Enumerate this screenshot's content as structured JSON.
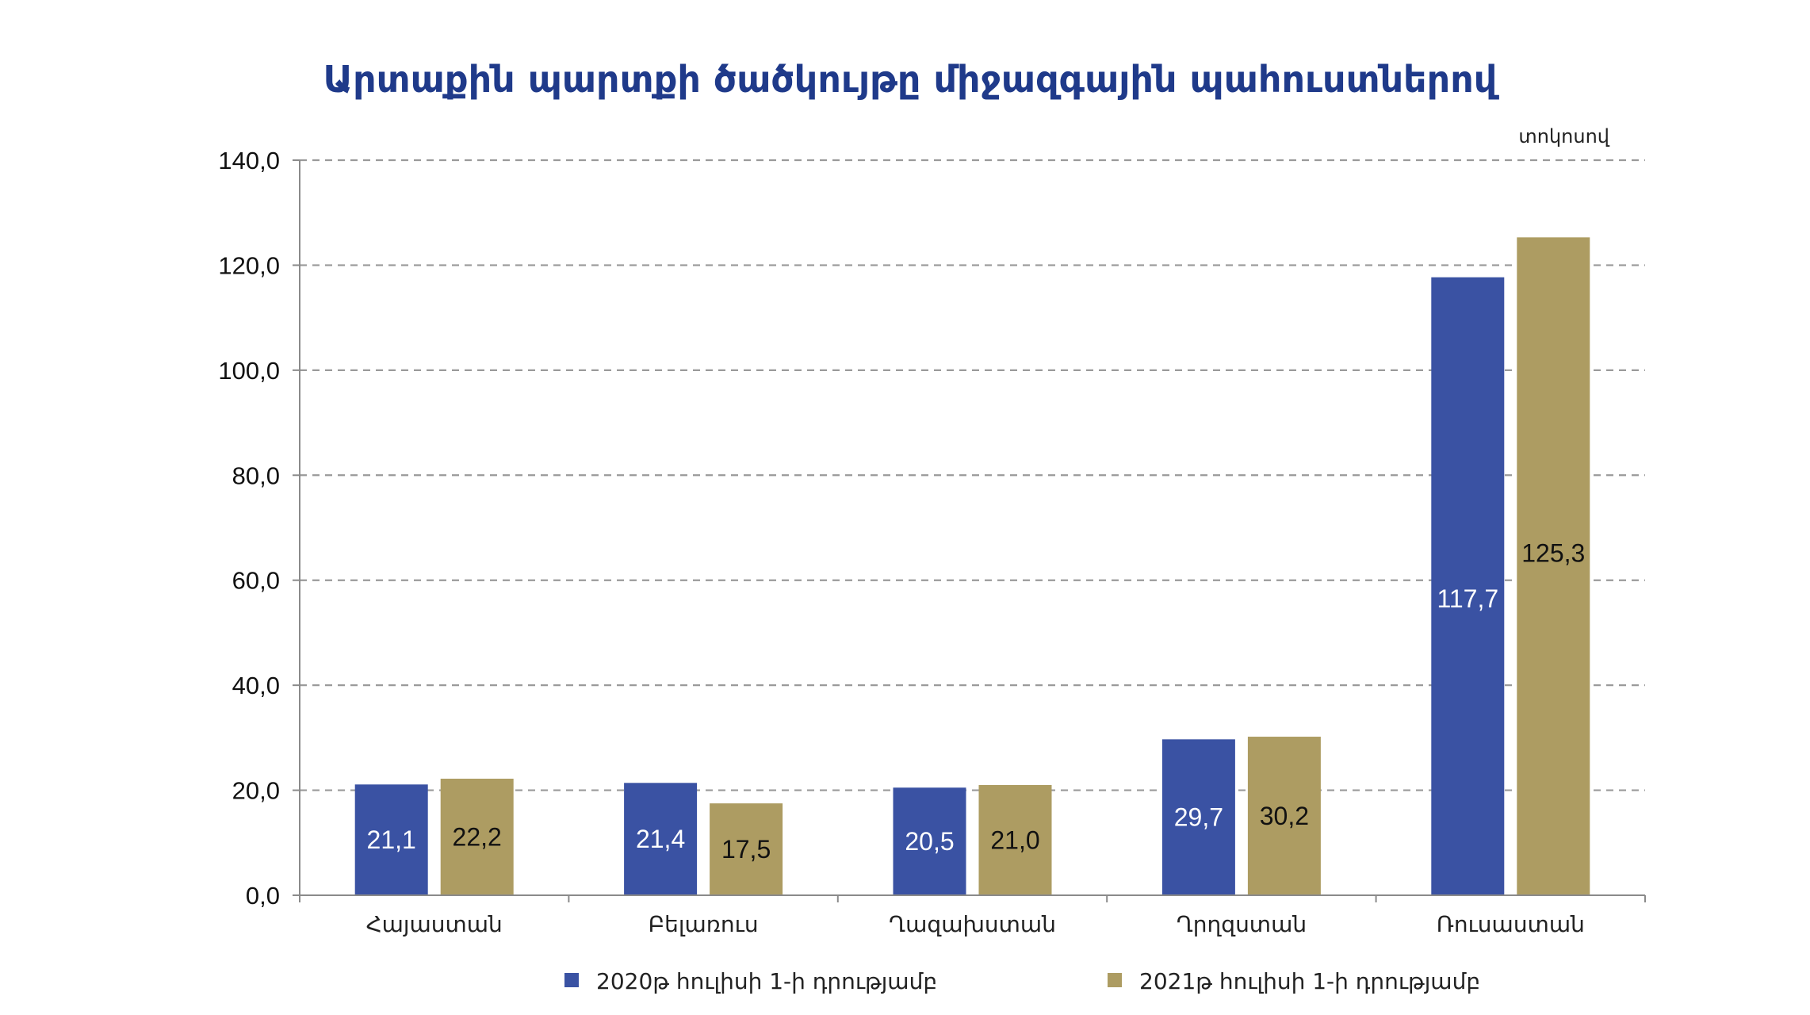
{
  "chart_data": {
    "type": "bar",
    "title": "Արտաքին պարտքի ծածկույթը միջազգային պահուստներով",
    "unit": "տոկոսով",
    "categories": [
      "Հայաստան",
      "Բելառուս",
      "Ղազախստան",
      "Ղրղզստան",
      "Ռուսաստան"
    ],
    "series": [
      {
        "name": "2020թ հուլիսի 1-ի դրությամբ",
        "color": "#3A52A3",
        "values": [
          21.1,
          21.4,
          20.5,
          29.7,
          117.7
        ]
      },
      {
        "name": "2021թ հուլիսի 1-ի դրությամբ",
        "color": "#AD9C62",
        "values": [
          22.2,
          17.5,
          21.0,
          30.2,
          125.3
        ]
      }
    ],
    "data_labels": [
      [
        "21,1",
        "21,4",
        "20,5",
        "29,7",
        "117,7"
      ],
      [
        "22,2",
        "17,5",
        "21,0",
        "30,2",
        "125,3"
      ]
    ],
    "y_ticks": [
      "0,0",
      "20,0",
      "40,0",
      "60,0",
      "80,0",
      "100,0",
      "120,0",
      "140,0"
    ],
    "ylim": [
      0,
      140
    ],
    "grid": true,
    "legend_position": "bottom",
    "title_color": "#1F3A8A"
  }
}
